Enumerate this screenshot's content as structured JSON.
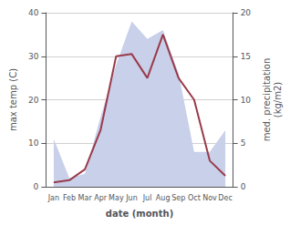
{
  "chart_data": {
    "type": "line",
    "categories": [
      "Jan",
      "Feb",
      "Mar",
      "Apr",
      "May",
      "Jun",
      "Jul",
      "Aug",
      "Sep",
      "Oct",
      "Nov",
      "Dec"
    ],
    "series": [
      {
        "type": "area",
        "axis": "y2",
        "color": "#c8d0ea",
        "values": [
          5.5,
          1.0,
          1.5,
          8.0,
          14.0,
          19.0,
          17.0,
          18.0,
          13.0,
          4.0,
          4.0,
          6.5
        ]
      },
      {
        "type": "line",
        "color": "#9b3a4a",
        "values": [
          1.0,
          1.5,
          4.0,
          13.0,
          30.0,
          30.5,
          25.0,
          35.0,
          25.0,
          20.0,
          6.0,
          2.5
        ]
      }
    ],
    "xlabel": "date (month)",
    "ylabel": "max temp (C)",
    "y2label": "med. precipitation\n(kg/m2)",
    "ylim": [
      0,
      40
    ],
    "yticks": [
      0,
      10,
      20,
      30,
      40
    ],
    "y2lim": [
      0,
      20
    ],
    "y2ticks": [
      0,
      5,
      10,
      15,
      20
    ],
    "grid": true
  }
}
